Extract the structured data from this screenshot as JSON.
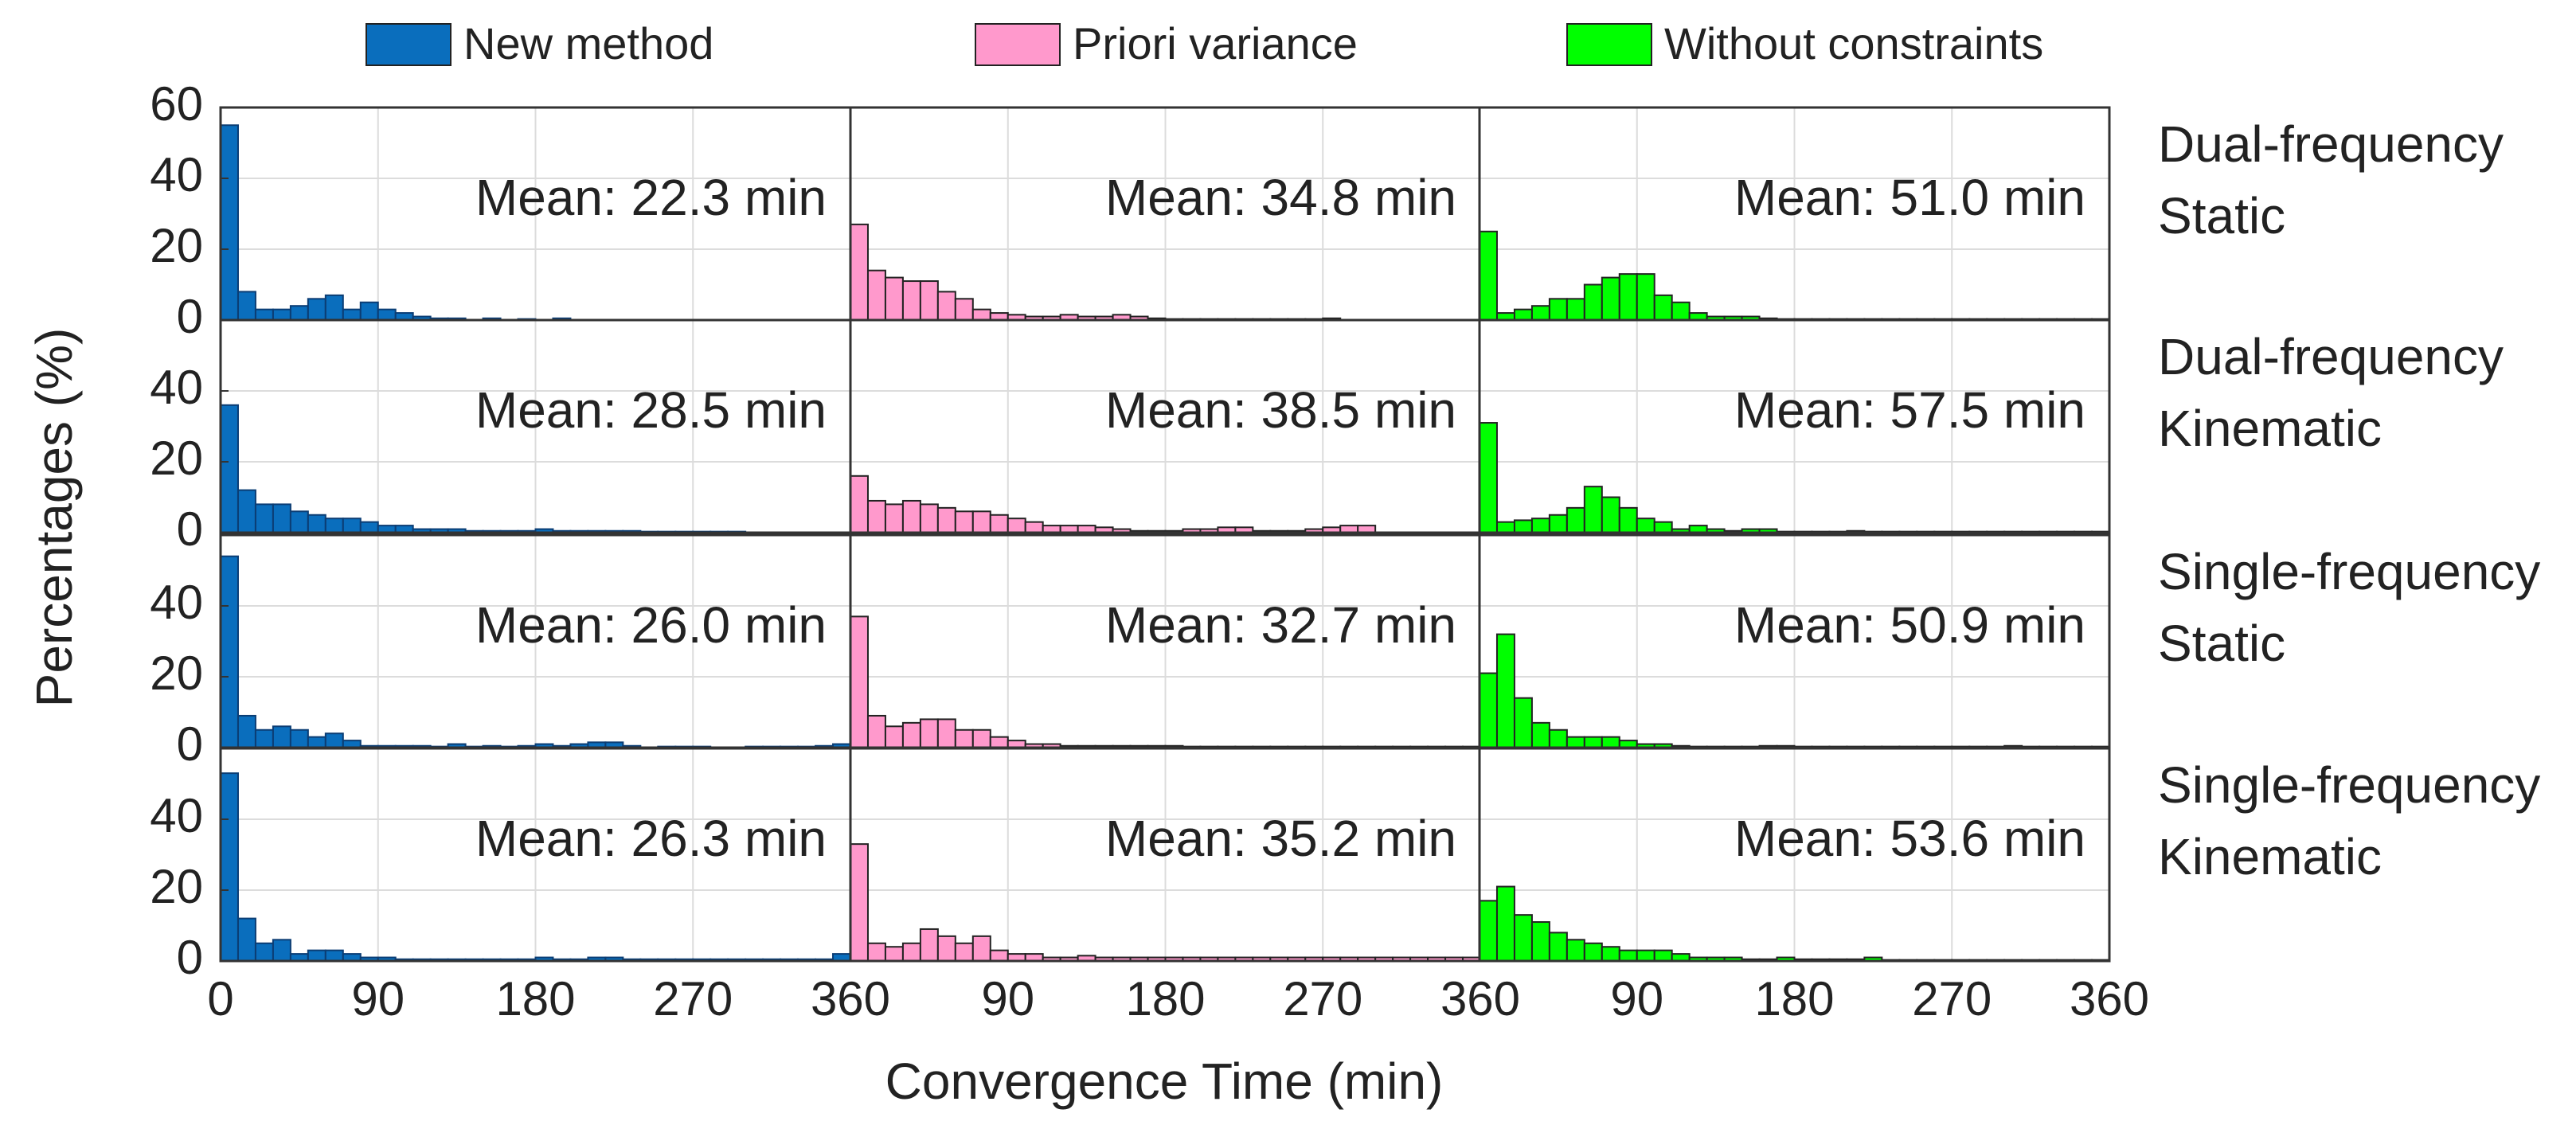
{
  "chart_data": {
    "type": "bar",
    "subtype": "histogram-grid",
    "xlabel": "Convergence Time (min)",
    "ylabel": "Percentages (%)",
    "x_tick_labels": [
      "0",
      "90",
      "180",
      "270",
      "360"
    ],
    "xlim": [
      0,
      360
    ],
    "ylim": [
      0,
      60
    ],
    "top_row_y_ticks": [
      "0",
      "20",
      "40",
      "60"
    ],
    "other_row_y_ticks": [
      "0",
      "20",
      "40"
    ],
    "bin_width_min": 10,
    "grid": true,
    "legend_position": "top",
    "methods": [
      {
        "name": "New method",
        "color": "#0a6ebd"
      },
      {
        "name": "Priori variance",
        "color": "#ff99cc"
      },
      {
        "name": "Without constraints",
        "color": "#00ff00"
      }
    ],
    "rows": [
      {
        "label_lines": [
          "Dual-frequency",
          "Static"
        ],
        "panels": [
          {
            "mean_label": "Mean: 22.3 min",
            "values": [
              55,
              8,
              3,
              3,
              4,
              6,
              7,
              3,
              5,
              3,
              2,
              1,
              0.5,
              0.5,
              0,
              0.5,
              0,
              0.3,
              0,
              0.5,
              0,
              0,
              0,
              0,
              0,
              0,
              0,
              0,
              0,
              0,
              0,
              0,
              0,
              0,
              0,
              0
            ]
          },
          {
            "mean_label": "Mean: 34.8 min",
            "values": [
              27,
              14,
              12,
              11,
              11,
              8,
              6,
              3,
              2,
              1.5,
              1,
              1,
              1.5,
              1,
              1,
              1.5,
              1,
              0.5,
              0.3,
              0.3,
              0.3,
              0.3,
              0.3,
              0.3,
              0.3,
              0.3,
              0.3,
              0.5,
              0,
              0,
              0,
              0,
              0,
              0,
              0,
              0
            ]
          },
          {
            "mean_label": "Mean: 51.0 min",
            "values": [
              25,
              2,
              3,
              4,
              6,
              6,
              10,
              12,
              13,
              13,
              7,
              5,
              2,
              1,
              1,
              1,
              0.5,
              0.3,
              0.3,
              0.3,
              0.3,
              0.3,
              0.3,
              0.3,
              0.3,
              0.3,
              0.3,
              0.3,
              0.3,
              0.3,
              0.3,
              0.3,
              0.3,
              0.3,
              0.3,
              0.3
            ]
          }
        ]
      },
      {
        "label_lines": [
          "Dual-frequency",
          "Kinematic"
        ],
        "panels": [
          {
            "mean_label": "Mean: 28.5 min",
            "values": [
              36,
              12,
              8,
              8,
              6,
              5,
              4,
              4,
              3,
              2,
              2,
              1,
              1,
              1,
              0.5,
              0.5,
              0.5,
              0.5,
              1,
              0.5,
              0.5,
              0.5,
              0.5,
              0.5,
              0.3,
              0.3,
              0.3,
              0.3,
              0.3,
              0.3,
              0,
              0,
              0,
              0,
              0,
              0
            ]
          },
          {
            "mean_label": "Mean: 38.5 min",
            "values": [
              16,
              9,
              8,
              9,
              8,
              7,
              6,
              6,
              5,
              4,
              3,
              2,
              2,
              2,
              1.5,
              1,
              0.5,
              0.5,
              0.5,
              1,
              1,
              1.5,
              1.5,
              0.5,
              0.5,
              0.5,
              1,
              1.5,
              2,
              2,
              0,
              0,
              0,
              0,
              0,
              0
            ]
          },
          {
            "mean_label": "Mean: 57.5 min",
            "values": [
              31,
              3,
              3.5,
              4,
              5,
              7,
              13,
              10,
              7,
              4,
              3,
              1,
              2,
              1,
              0.5,
              1,
              1,
              0.3,
              0.3,
              0.3,
              0.3,
              0.5,
              0.3,
              0.3,
              0.3,
              0.3,
              0.3,
              0.3,
              0.3,
              0.3,
              0.3,
              0.3,
              0.3,
              0.3,
              0.3,
              0.3
            ]
          }
        ]
      },
      {
        "label_lines": [
          "Single-frequency",
          "Static"
        ],
        "panels": [
          {
            "mean_label": "Mean: 26.0 min",
            "values": [
              54,
              9,
              5,
              6,
              5,
              3,
              4,
              2,
              0.5,
              0.5,
              0.5,
              0.5,
              0.3,
              1,
              0.3,
              0.5,
              0.3,
              0.5,
              1,
              0.5,
              1,
              1.5,
              1.5,
              0.5,
              0,
              0.3,
              0.3,
              0.3,
              0,
              0,
              0.3,
              0.3,
              0.3,
              0.3,
              0.5,
              1
            ]
          },
          {
            "mean_label": "Mean: 32.7 min",
            "values": [
              37,
              9,
              6,
              7,
              8,
              8,
              5,
              5,
              3,
              2,
              1,
              1,
              0.5,
              0.5,
              0.5,
              0.5,
              0.5,
              0.5,
              0.5,
              0.3,
              0.3,
              0.3,
              0.3,
              0.3,
              0.3,
              0.3,
              0.3,
              0.3,
              0.3,
              0.3,
              0.3,
              0.3,
              0.3,
              0.3,
              0.3,
              0.3
            ]
          },
          {
            "mean_label": "Mean: 50.9 min",
            "values": [
              21,
              32,
              14,
              7,
              5,
              3,
              3,
              3,
              2,
              1,
              1,
              0.5,
              0.3,
              0.3,
              0.3,
              0.3,
              0.5,
              0.5,
              0.3,
              0.3,
              0.3,
              0.3,
              0.3,
              0.3,
              0.3,
              0.3,
              0.3,
              0.3,
              0.3,
              0.3,
              0.5,
              0.3,
              0.3,
              0.3,
              0.3,
              0.3
            ]
          }
        ]
      },
      {
        "label_lines": [
          "Single-frequency",
          "Kinematic"
        ],
        "panels": [
          {
            "mean_label": "Mean: 26.3 min",
            "values": [
              53,
              12,
              5,
              6,
              2,
              3,
              3,
              2,
              1,
              1,
              0.5,
              0.5,
              0.5,
              0.5,
              0.5,
              0.5,
              0.5,
              0.5,
              1,
              0.5,
              0.5,
              1,
              1,
              0.5,
              0.5,
              0.5,
              0.5,
              0.5,
              0.5,
              0.5,
              0.5,
              0.5,
              0.5,
              0.5,
              0.5,
              2
            ]
          },
          {
            "mean_label": "Mean: 35.2 min",
            "values": [
              33,
              5,
              4,
              5,
              9,
              7,
              5,
              7,
              3,
              2,
              2,
              1,
              1,
              1.5,
              1,
              1,
              1,
              1,
              1,
              1,
              1,
              1,
              1,
              1,
              1,
              1,
              1,
              1,
              1,
              1,
              1,
              1,
              1,
              1,
              1,
              1
            ]
          },
          {
            "mean_label": "Mean: 53.6 min",
            "values": [
              17,
              21,
              13,
              11,
              8,
              6,
              5,
              4,
              3,
              3,
              3,
              2,
              1,
              1,
              1,
              0.5,
              0.5,
              1,
              0.5,
              0.5,
              0.5,
              0.5,
              1,
              0.3,
              0.3,
              0.3,
              0.3,
              0.3,
              0.3,
              0.3,
              0.3,
              0.3,
              0.3,
              0.3,
              0.3,
              0.3
            ]
          }
        ]
      }
    ]
  }
}
